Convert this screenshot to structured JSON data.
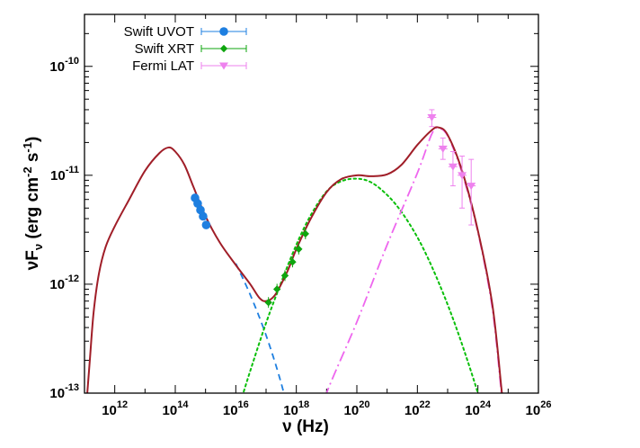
{
  "chart_data": {
    "type": "scatter",
    "xlabel": "ν (Hz)",
    "ylabel": "νFν (erg cm-2 s-1)",
    "xscale": "log",
    "yscale": "log",
    "xlim": [
      100000000000.0,
      1e+26
    ],
    "ylim": [
      1e-13,
      3e-10
    ],
    "xticks": [
      {
        "base": "10",
        "exp": "12",
        "value": 1000000000000.0
      },
      {
        "base": "10",
        "exp": "14",
        "value": 100000000000000.0
      },
      {
        "base": "10",
        "exp": "16",
        "value": 1e+16
      },
      {
        "base": "10",
        "exp": "18",
        "value": 1e+18
      },
      {
        "base": "10",
        "exp": "20",
        "value": 1e+20
      },
      {
        "base": "10",
        "exp": "22",
        "value": 1e+22
      },
      {
        "base": "10",
        "exp": "24",
        "value": 1e+24
      },
      {
        "base": "10",
        "exp": "26",
        "value": 1e+26
      }
    ],
    "yticks": [
      {
        "base": "10",
        "exp": "-13",
        "value": 1e-13
      },
      {
        "base": "10",
        "exp": "-12",
        "value": 1e-12
      },
      {
        "base": "10",
        "exp": "-11",
        "value": 1e-11
      },
      {
        "base": "10",
        "exp": "-10",
        "value": 1e-10
      }
    ],
    "legend": "top-left",
    "series": [
      {
        "name": "Swift UVOT",
        "color": "#1e7fe0",
        "marker": "circle",
        "points": [
          {
            "x": 450000000000000.0,
            "y": 6.2e-12
          },
          {
            "x": 550000000000000.0,
            "y": 5.5e-12
          },
          {
            "x": 680000000000000.0,
            "y": 4.8e-12
          },
          {
            "x": 830000000000000.0,
            "y": 4.2e-12
          },
          {
            "x": 1050000000000000.0,
            "y": 3.5e-12
          }
        ]
      },
      {
        "name": "Swift XRT",
        "color": "#0ea50e",
        "marker": "diamond",
        "points": [
          {
            "x": 1.2e+17,
            "y": 6.8e-13
          },
          {
            "x": 2.3e+17,
            "y": 9e-13
          },
          {
            "x": 4.2e+17,
            "y": 1.2e-12
          },
          {
            "x": 7.5e+17,
            "y": 1.6e-12
          },
          {
            "x": 1.2e+18,
            "y": 2.1e-12
          },
          {
            "x": 2e+18,
            "y": 2.9e-12
          }
        ]
      },
      {
        "name": "Fermi LAT",
        "color": "#ee82ee",
        "marker": "triangle-down",
        "points": [
          {
            "x": 3e+22,
            "y": 3.4e-11,
            "yerr": [
              2.8e-11,
              4e-11
            ]
          },
          {
            "x": 7e+22,
            "y": 1.75e-11,
            "yerr": [
              1.4e-11,
              2.2e-11
            ]
          },
          {
            "x": 1.5e+23,
            "y": 1.2e-11,
            "yerr": [
              8e-12,
              1.65e-11
            ]
          },
          {
            "x": 3e+23,
            "y": 1e-11,
            "yerr": [
              5e-12,
              1.5e-11
            ]
          },
          {
            "x": 6e+23,
            "y": 8e-12,
            "yerr": [
              3.5e-12,
              1.4e-11
            ]
          }
        ]
      }
    ],
    "model_curves": [
      {
        "role": "synchrotron",
        "color": "#1e7fe0",
        "style": "dashed",
        "points": [
          {
            "x": 1e+16,
            "y": 1.55e-12
          },
          {
            "x": 3e+16,
            "y": 8e-13
          },
          {
            "x": 1e+17,
            "y": 3.4e-13
          },
          {
            "x": 3e+17,
            "y": 1.3e-13
          },
          {
            "x": 6e+17,
            "y": 6e-14
          }
        ]
      },
      {
        "role": "ssc",
        "color": "#0bbf0b",
        "style": "dotted",
        "points": [
          {
            "x": 1e+16,
            "y": 6e-14
          },
          {
            "x": 3e+16,
            "y": 1.6e-13
          },
          {
            "x": 1e+17,
            "y": 4.4e-13
          },
          {
            "x": 3e+17,
            "y": 1e-12
          },
          {
            "x": 1e+18,
            "y": 2.3e-12
          },
          {
            "x": 3e+18,
            "y": 4.3e-12
          },
          {
            "x": 1e+19,
            "y": 7.1e-12
          },
          {
            "x": 3e+19,
            "y": 8.8e-12
          },
          {
            "x": 1e+20,
            "y": 9.3e-12
          },
          {
            "x": 3e+20,
            "y": 8.6e-12
          },
          {
            "x": 1e+21,
            "y": 6.6e-12
          },
          {
            "x": 3e+21,
            "y": 4.6e-12
          },
          {
            "x": 1e+22,
            "y": 2.7e-12
          },
          {
            "x": 3e+22,
            "y": 1.45e-12
          },
          {
            "x": 1e+23,
            "y": 6.5e-13
          },
          {
            "x": 3e+23,
            "y": 2.8e-13
          },
          {
            "x": 1e+24,
            "y": 1e-13
          },
          {
            "x": 1.6e+24,
            "y": 6e-14
          }
        ]
      },
      {
        "role": "external-compton",
        "color": "#ee66ee",
        "style": "dash-dot",
        "points": [
          {
            "x": 7e+18,
            "y": 6e-14
          },
          {
            "x": 1e+19,
            "y": 1e-13
          },
          {
            "x": 1e+20,
            "y": 4.5e-13
          },
          {
            "x": 1e+21,
            "y": 2.3e-12
          },
          {
            "x": 1e+22,
            "y": 1.05e-11
          },
          {
            "x": 3e+22,
            "y": 2.4e-11
          },
          {
            "x": 5e+22,
            "y": 2.7e-11
          },
          {
            "x": 1e+23,
            "y": 2.3e-11
          },
          {
            "x": 3e+23,
            "y": 1.05e-11
          },
          {
            "x": 1e+24,
            "y": 3e-12
          },
          {
            "x": 3e+24,
            "y": 6e-13
          },
          {
            "x": 6e+24,
            "y": 1e-13
          },
          {
            "x": 9e+24,
            "y": 4e-14
          }
        ]
      },
      {
        "role": "total",
        "color": "#a01e28",
        "style": "solid",
        "points": [
          {
            "x": 120000000000.0,
            "y": 9e-14
          },
          {
            "x": 150000000000.0,
            "y": 2e-13
          },
          {
            "x": 200000000000.0,
            "y": 5.5e-13
          },
          {
            "x": 300000000000.0,
            "y": 1.25e-12
          },
          {
            "x": 500000000000.0,
            "y": 2.2e-12
          },
          {
            "x": 1000000000000.0,
            "y": 3.4e-12
          },
          {
            "x": 3000000000000.0,
            "y": 6e-12
          },
          {
            "x": 10000000000000.0,
            "y": 1.1e-11
          },
          {
            "x": 30000000000000.0,
            "y": 1.6e-11
          },
          {
            "x": 60000000000000.0,
            "y": 1.8e-11
          },
          {
            "x": 100000000000000.0,
            "y": 1.65e-11
          },
          {
            "x": 200000000000000.0,
            "y": 1.25e-11
          },
          {
            "x": 400000000000000.0,
            "y": 7.8e-12
          },
          {
            "x": 1000000000000000.0,
            "y": 4.2e-12
          },
          {
            "x": 3000000000000000.0,
            "y": 2.4e-12
          },
          {
            "x": 1e+16,
            "y": 1.5e-12
          },
          {
            "x": 3e+16,
            "y": 1e-12
          },
          {
            "x": 6e+16,
            "y": 7.5e-13
          },
          {
            "x": 1e+17,
            "y": 7e-13
          },
          {
            "x": 2e+17,
            "y": 8e-13
          },
          {
            "x": 5e+17,
            "y": 1.3e-12
          },
          {
            "x": 1e+18,
            "y": 2.1e-12
          },
          {
            "x": 3e+18,
            "y": 4e-12
          },
          {
            "x": 1e+19,
            "y": 7e-12
          },
          {
            "x": 3e+19,
            "y": 9.2e-12
          },
          {
            "x": 1e+20,
            "y": 1e-11
          },
          {
            "x": 3e+20,
            "y": 9.8e-12
          },
          {
            "x": 1e+21,
            "y": 1.02e-11
          },
          {
            "x": 3e+21,
            "y": 1.25e-11
          },
          {
            "x": 1e+22,
            "y": 1.9e-11
          },
          {
            "x": 3e+22,
            "y": 2.6e-11
          },
          {
            "x": 5e+22,
            "y": 2.75e-11
          },
          {
            "x": 1e+23,
            "y": 2.35e-11
          },
          {
            "x": 3e+23,
            "y": 1.1e-11
          },
          {
            "x": 1e+24,
            "y": 3.1e-12
          },
          {
            "x": 3e+24,
            "y": 6.5e-13
          },
          {
            "x": 6e+24,
            "y": 1.1e-13
          },
          {
            "x": 7e+24,
            "y": 7e-14
          }
        ]
      }
    ]
  }
}
